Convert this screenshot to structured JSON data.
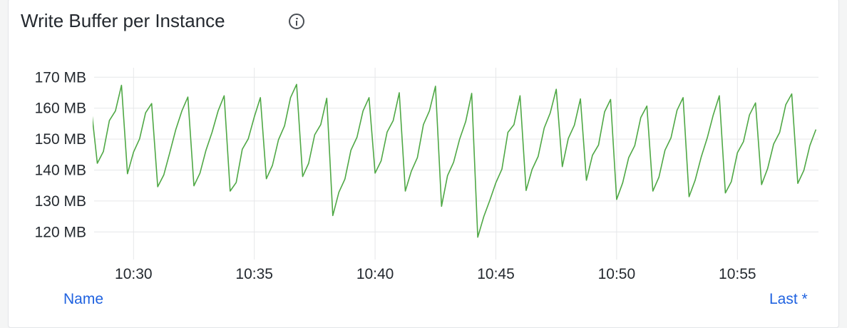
{
  "panel": {
    "title": "Write Buffer per Instance",
    "info_icon": "info-circle-icon"
  },
  "legend": {
    "name_header": "Name",
    "last_header": "Last *"
  },
  "colors": {
    "series": "#4fa845",
    "grid": "#e6e7e9",
    "legend_link": "#1f62e0"
  },
  "chart_data": {
    "type": "line",
    "title": "Write Buffer per Instance",
    "xlabel": "",
    "ylabel": "",
    "ylim": [
      115,
      173
    ],
    "y_ticks": [
      120,
      130,
      140,
      150,
      160,
      170
    ],
    "y_tick_labels": [
      "120 MB",
      "130 MB",
      "140 MB",
      "150 MB",
      "160 MB",
      "170 MB"
    ],
    "x_ticks": [
      "10:30",
      "10:35",
      "10:40",
      "10:45",
      "10:50",
      "10:55"
    ],
    "xlim": [
      "10:28:18",
      "10:58:21"
    ],
    "grid": true,
    "legend": "bottom",
    "x": [
      "10:28:15",
      "10:28:30",
      "10:28:45",
      "10:29:00",
      "10:29:15",
      "10:29:30",
      "10:29:45",
      "10:30:00",
      "10:30:15",
      "10:30:30",
      "10:30:45",
      "10:31:00",
      "10:31:15",
      "10:31:30",
      "10:31:45",
      "10:32:00",
      "10:32:15",
      "10:32:30",
      "10:32:45",
      "10:33:00",
      "10:33:15",
      "10:33:30",
      "10:33:45",
      "10:34:00",
      "10:34:15",
      "10:34:30",
      "10:34:45",
      "10:35:00",
      "10:35:15",
      "10:35:30",
      "10:35:45",
      "10:36:00",
      "10:36:15",
      "10:36:30",
      "10:36:45",
      "10:37:00",
      "10:37:15",
      "10:37:30",
      "10:37:45",
      "10:38:00",
      "10:38:15",
      "10:38:30",
      "10:38:45",
      "10:39:00",
      "10:39:15",
      "10:39:30",
      "10:39:45",
      "10:40:00",
      "10:40:15",
      "10:40:30",
      "10:40:45",
      "10:41:00",
      "10:41:15",
      "10:41:30",
      "10:41:45",
      "10:42:00",
      "10:42:15",
      "10:42:30",
      "10:42:45",
      "10:43:00",
      "10:43:15",
      "10:43:30",
      "10:43:45",
      "10:44:00",
      "10:44:15",
      "10:44:30",
      "10:44:45",
      "10:45:00",
      "10:45:15",
      "10:45:30",
      "10:45:45",
      "10:46:00",
      "10:46:15",
      "10:46:30",
      "10:46:45",
      "10:47:00",
      "10:47:15",
      "10:47:30",
      "10:47:45",
      "10:48:00",
      "10:48:15",
      "10:48:30",
      "10:48:45",
      "10:49:00",
      "10:49:15",
      "10:49:30",
      "10:49:45",
      "10:50:00",
      "10:50:15",
      "10:50:30",
      "10:50:45",
      "10:51:00",
      "10:51:15",
      "10:51:30",
      "10:51:45",
      "10:52:00",
      "10:52:15",
      "10:52:30",
      "10:52:45",
      "10:53:00",
      "10:53:15",
      "10:53:30",
      "10:53:45",
      "10:54:00",
      "10:54:15",
      "10:54:30",
      "10:54:45",
      "10:55:00",
      "10:55:15",
      "10:55:30",
      "10:55:45",
      "10:56:00",
      "10:56:15",
      "10:56:30",
      "10:56:45",
      "10:57:00",
      "10:57:15",
      "10:57:30",
      "10:57:45",
      "10:58:00",
      "10:58:15"
    ],
    "series": [
      {
        "unit": "MB",
        "values": [
          160,
          142.2,
          146.0,
          156.0,
          159.1,
          167.4,
          138.8,
          145.8,
          150.1,
          158.5,
          161.5,
          134.6,
          138.4,
          145.6,
          153.1,
          159.1,
          163.6,
          134.9,
          139.0,
          146.4,
          152.2,
          159.1,
          164.0,
          133.2,
          136.0,
          146.7,
          150.1,
          157.2,
          163.4,
          137.2,
          141.5,
          149.8,
          154.3,
          163.4,
          167.7,
          137.9,
          142.2,
          151.4,
          154.7,
          163.2,
          125.3,
          132.8,
          137.1,
          146.4,
          150.6,
          159.1,
          163.4,
          139.0,
          143.0,
          152.3,
          156.0,
          165.0,
          133.2,
          139.6,
          144.0,
          154.7,
          159.1,
          167.1,
          128.3,
          138.2,
          142.5,
          150.0,
          155.7,
          164.8,
          118.3,
          125.0,
          130.2,
          135.9,
          140.3,
          152.2,
          154.7,
          164.0,
          133.4,
          140.2,
          144.4,
          153.6,
          158.4,
          166.1,
          141.1,
          150.2,
          154.5,
          163.0,
          136.7,
          144.8,
          148.1,
          158.8,
          162.8,
          130.5,
          135.9,
          144.0,
          147.9,
          157.0,
          160.7,
          133.2,
          137.7,
          146.4,
          150.4,
          159.3,
          163.4,
          131.4,
          136.7,
          144.2,
          150.4,
          157.8,
          164.0,
          132.6,
          136.3,
          145.6,
          149.2,
          157.8,
          161.7,
          135.3,
          140.5,
          148.4,
          152.2,
          161.1,
          164.6,
          135.7,
          139.9,
          147.9,
          153.1
        ]
      }
    ]
  }
}
